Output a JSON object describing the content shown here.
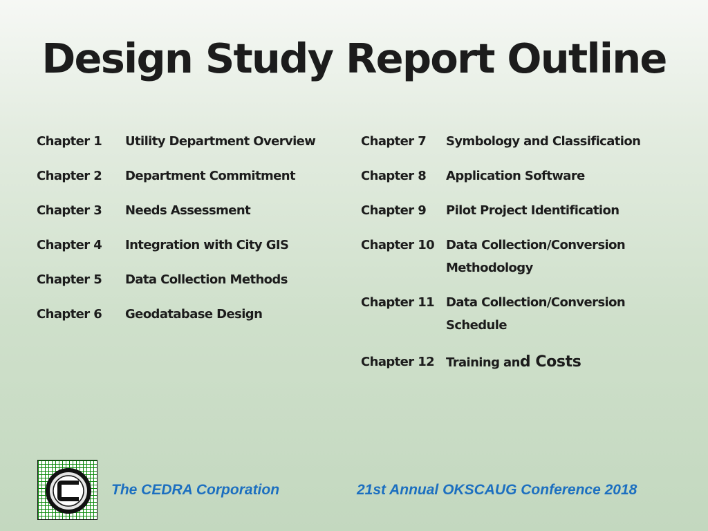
{
  "slide": {
    "title": "Design Study Report Outline"
  },
  "chapters_left": [
    {
      "num": "Chapter 1",
      "name": "Utility Department Overview"
    },
    {
      "num": "Chapter 2",
      "name": "Department Commitment"
    },
    {
      "num": "Chapter 3",
      "name": "Needs Assessment"
    },
    {
      "num": "Chapter 4",
      "name": "Integration with City GIS"
    },
    {
      "num": "Chapter 5",
      "name": "Data Collection Methods"
    },
    {
      "num": "Chapter 6",
      "name": "Geodatabase Design"
    }
  ],
  "chapters_right": [
    {
      "num": "Chapter 7",
      "name": "Symbology and Classification"
    },
    {
      "num": "Chapter 8",
      "name": "Application Software"
    },
    {
      "num": "Chapter 9",
      "name": "Pilot Project Identification"
    },
    {
      "num": "Chapter 10",
      "name_line1": "Data Collection/Conversion",
      "name_line2": "Methodology"
    },
    {
      "num": "Chapter 11",
      "name_line1": "Data Collection/Conversion",
      "name_line2": "Schedule"
    },
    {
      "num": "Chapter 12",
      "name_small": "Training an",
      "name_big": "d Costs"
    }
  ],
  "footer": {
    "company": "The CEDRA Corporation",
    "conference": "21st Annual OKSCAUG Conference 2018"
  },
  "icons": {
    "logo": "cedra-logo-icon"
  },
  "colors": {
    "footer_text": "#1c6fc0",
    "logo_grid": "#0a8a0a"
  }
}
